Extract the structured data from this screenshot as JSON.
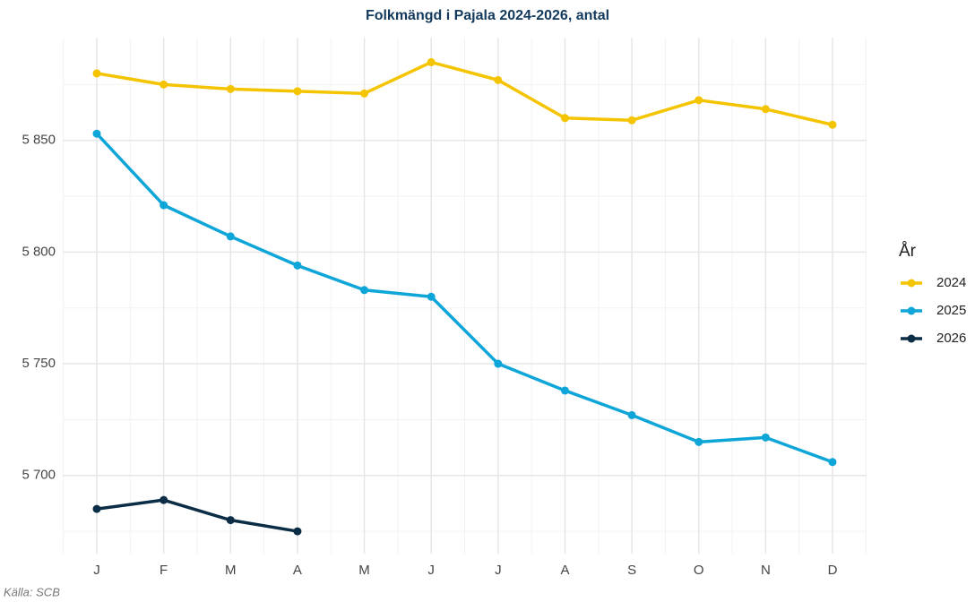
{
  "chart_data": {
    "type": "line",
    "title": "Folkmängd i Pajala 2024-2026, antal",
    "caption": "Källa: SCB",
    "legend_title": "År",
    "legend": "right",
    "grid": true,
    "categories": [
      "J",
      "F",
      "M",
      "A",
      "M",
      "J",
      "J",
      "A",
      "S",
      "O",
      "N",
      "D"
    ],
    "series": [
      {
        "name": "2024",
        "color": "#f5c400",
        "values": [
          5880,
          5875,
          5873,
          5872,
          5871,
          5885,
          5877,
          5860,
          5859,
          5868,
          5864,
          5857
        ]
      },
      {
        "name": "2025",
        "color": "#0ea5d8",
        "values": [
          5853,
          5821,
          5807,
          5794,
          5783,
          5780,
          5750,
          5738,
          5727,
          5715,
          5717,
          5706
        ]
      },
      {
        "name": "2026",
        "color": "#0b2d45",
        "values": [
          5685,
          5689,
          5680,
          5675,
          null,
          null,
          null,
          null,
          null,
          null,
          null,
          null
        ]
      }
    ],
    "ylim": [
      5665,
      5896
    ],
    "yticks": [
      {
        "value": 5700,
        "label": "5 700"
      },
      {
        "value": 5750,
        "label": "5 750"
      },
      {
        "value": 5800,
        "label": "5 800"
      },
      {
        "value": 5850,
        "label": "5 850"
      }
    ]
  }
}
